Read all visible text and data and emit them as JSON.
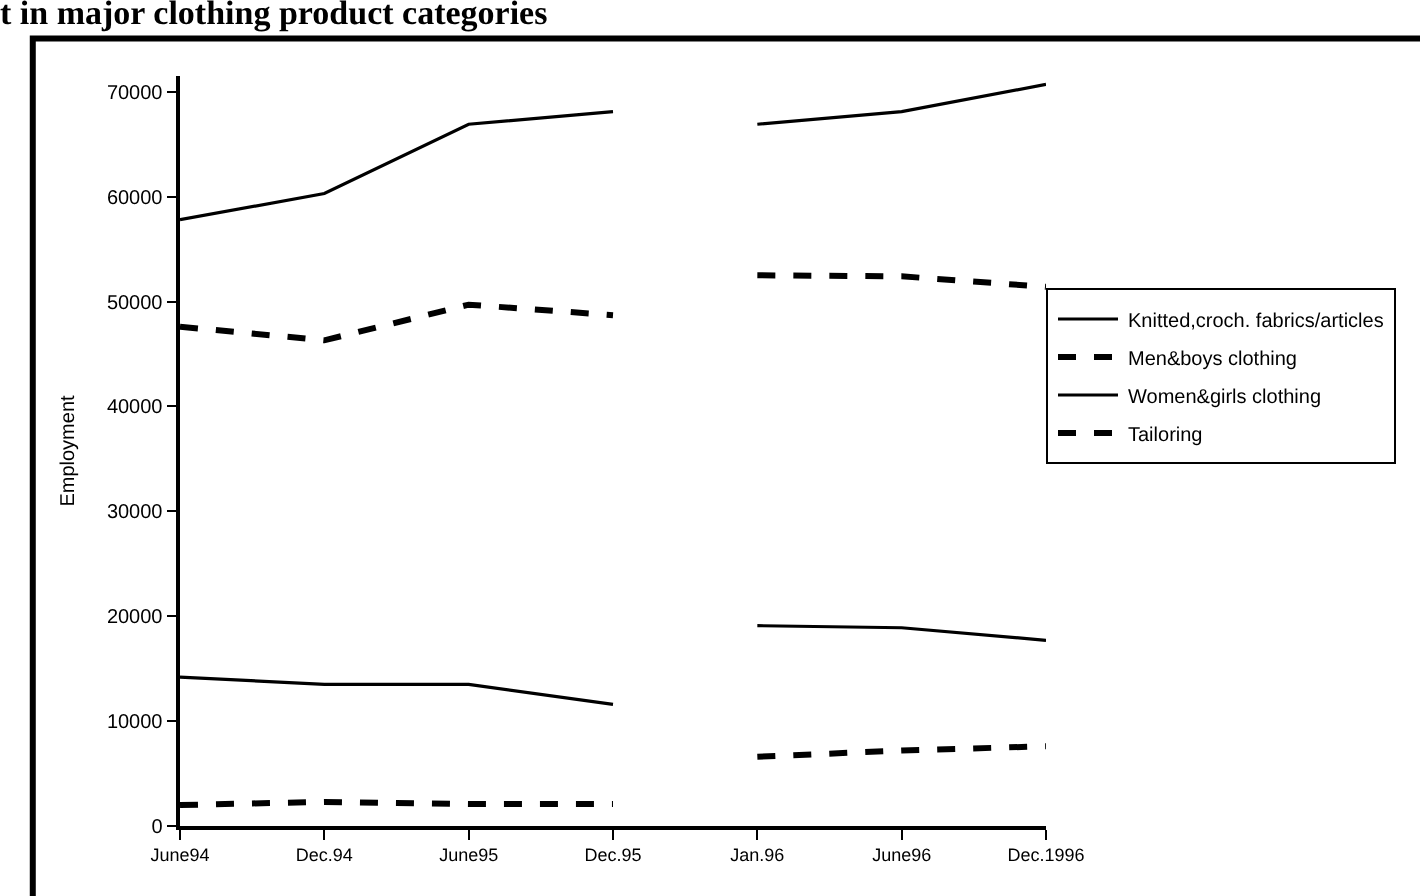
{
  "chart_data": {
    "type": "line",
    "title": "t in major clothing product categories",
    "ylabel": "Employment",
    "categories": [
      "June94",
      "Dec.94",
      "June95",
      "Dec.95",
      "Jan.96",
      "June96",
      "Dec.1996"
    ],
    "series": [
      {
        "name": "Knitted,croch. fabrics/articles",
        "color": "#000000",
        "line_style": "solid",
        "values": [
          14200,
          13500,
          13500,
          11600,
          null,
          null,
          null
        ]
      },
      {
        "name": "Men&boys clothing",
        "color": "#000000",
        "line_style": "dashed",
        "values": [
          47600,
          46300,
          49700,
          48700,
          null,
          null,
          null
        ]
      },
      {
        "name": "Women&girls clothing",
        "color": "#000000",
        "line_style": "solid",
        "values": [
          57800,
          60300,
          66900,
          68100,
          null,
          null,
          null
        ]
      },
      {
        "name": "Tailoring",
        "color": "#000000",
        "line_style": "dashed",
        "values": [
          2000,
          2300,
          2100,
          2100,
          null,
          null,
          null
        ]
      },
      {
        "color": "#000000",
        "line_style": "solid",
        "values": [
          null,
          null,
          null,
          null,
          19100,
          18900,
          17700
        ]
      },
      {
        "color": "#000000",
        "line_style": "dashed",
        "values": [
          null,
          null,
          null,
          null,
          52500,
          52400,
          51400
        ]
      },
      {
        "color": "#000000",
        "line_style": "solid",
        "values": [
          null,
          null,
          null,
          null,
          66900,
          68100,
          70700
        ]
      },
      {
        "color": "#000000",
        "line_style": "dashed",
        "values": [
          null,
          null,
          null,
          null,
          6600,
          7200,
          7600
        ]
      }
    ],
    "ylim": [
      0,
      71500
    ],
    "yticks": [
      0,
      10000,
      20000,
      30000,
      40000,
      50000,
      60000,
      70000
    ],
    "legend": "right",
    "marker": "none"
  }
}
